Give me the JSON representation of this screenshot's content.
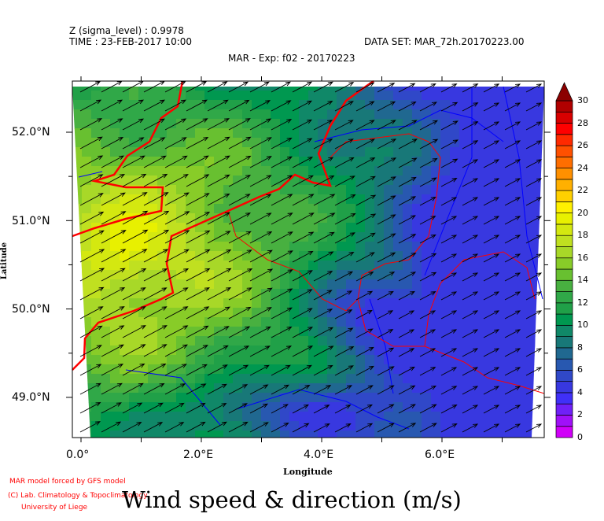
{
  "header": {
    "z_level": "Z (sigma_level) : 0.9978",
    "time": "TIME : 23-FEB-2017 10:00",
    "dataset": "DATA SET: MAR_72h.20170223.00",
    "subtitle": "MAR - Exp: f02 - 20170223"
  },
  "map": {
    "x_axis_label": "Longitude",
    "y_axis_label": "Latitude",
    "x_ticks": [
      {
        "value": 0,
        "label": "0.0°"
      },
      {
        "value": 2,
        "label": "2.0°E"
      },
      {
        "value": 4,
        "label": "4.0°E"
      },
      {
        "value": 6,
        "label": "6.0°E"
      }
    ],
    "y_ticks": [
      {
        "value": 52,
        "label": "52.0°N"
      },
      {
        "value": 51,
        "label": "51.0°N"
      },
      {
        "value": 50,
        "label": "50.0°N"
      },
      {
        "value": 49,
        "label": "49.0°N"
      }
    ],
    "lon_range": [
      -0.15,
      7.7
    ],
    "lat_range": [
      48.55,
      52.58
    ],
    "wind_direction": "south-westerly (arrows point north-east)",
    "coastline_color": "#ff0000",
    "river_color": "#0000ff"
  },
  "colorbar": {
    "labels": [
      "0",
      "2",
      "4",
      "6",
      "8",
      "10",
      "12",
      "14",
      "16",
      "18",
      "20",
      "22",
      "24",
      "26",
      "28",
      "30"
    ],
    "range": [
      0,
      30
    ],
    "extend": "max",
    "colors": [
      "#d000f8",
      "#a010f8",
      "#7020f8",
      "#4030f8",
      "#3838e0",
      "#3048c8",
      "#2858b0",
      "#206890",
      "#187878",
      "#108868",
      "#009850",
      "#20a048",
      "#30a848",
      "#48b040",
      "#68c030",
      "#88cc28",
      "#a8d828",
      "#c0e020",
      "#d4e810",
      "#e8f000",
      "#fff000",
      "#ffd000",
      "#ffb000",
      "#ff9000",
      "#ff6e00",
      "#ff5000",
      "#ff2a00",
      "#ff0000",
      "#d80000",
      "#b00000"
    ],
    "overflow_color": "#8b0000"
  },
  "footer": {
    "credit1": "MAR model forced by GFS model",
    "credit2": "(C) Lab. Climatology & Topoclimatology",
    "credit3": "University of Liege",
    "title": "Wind speed & direction (m/s)"
  }
}
